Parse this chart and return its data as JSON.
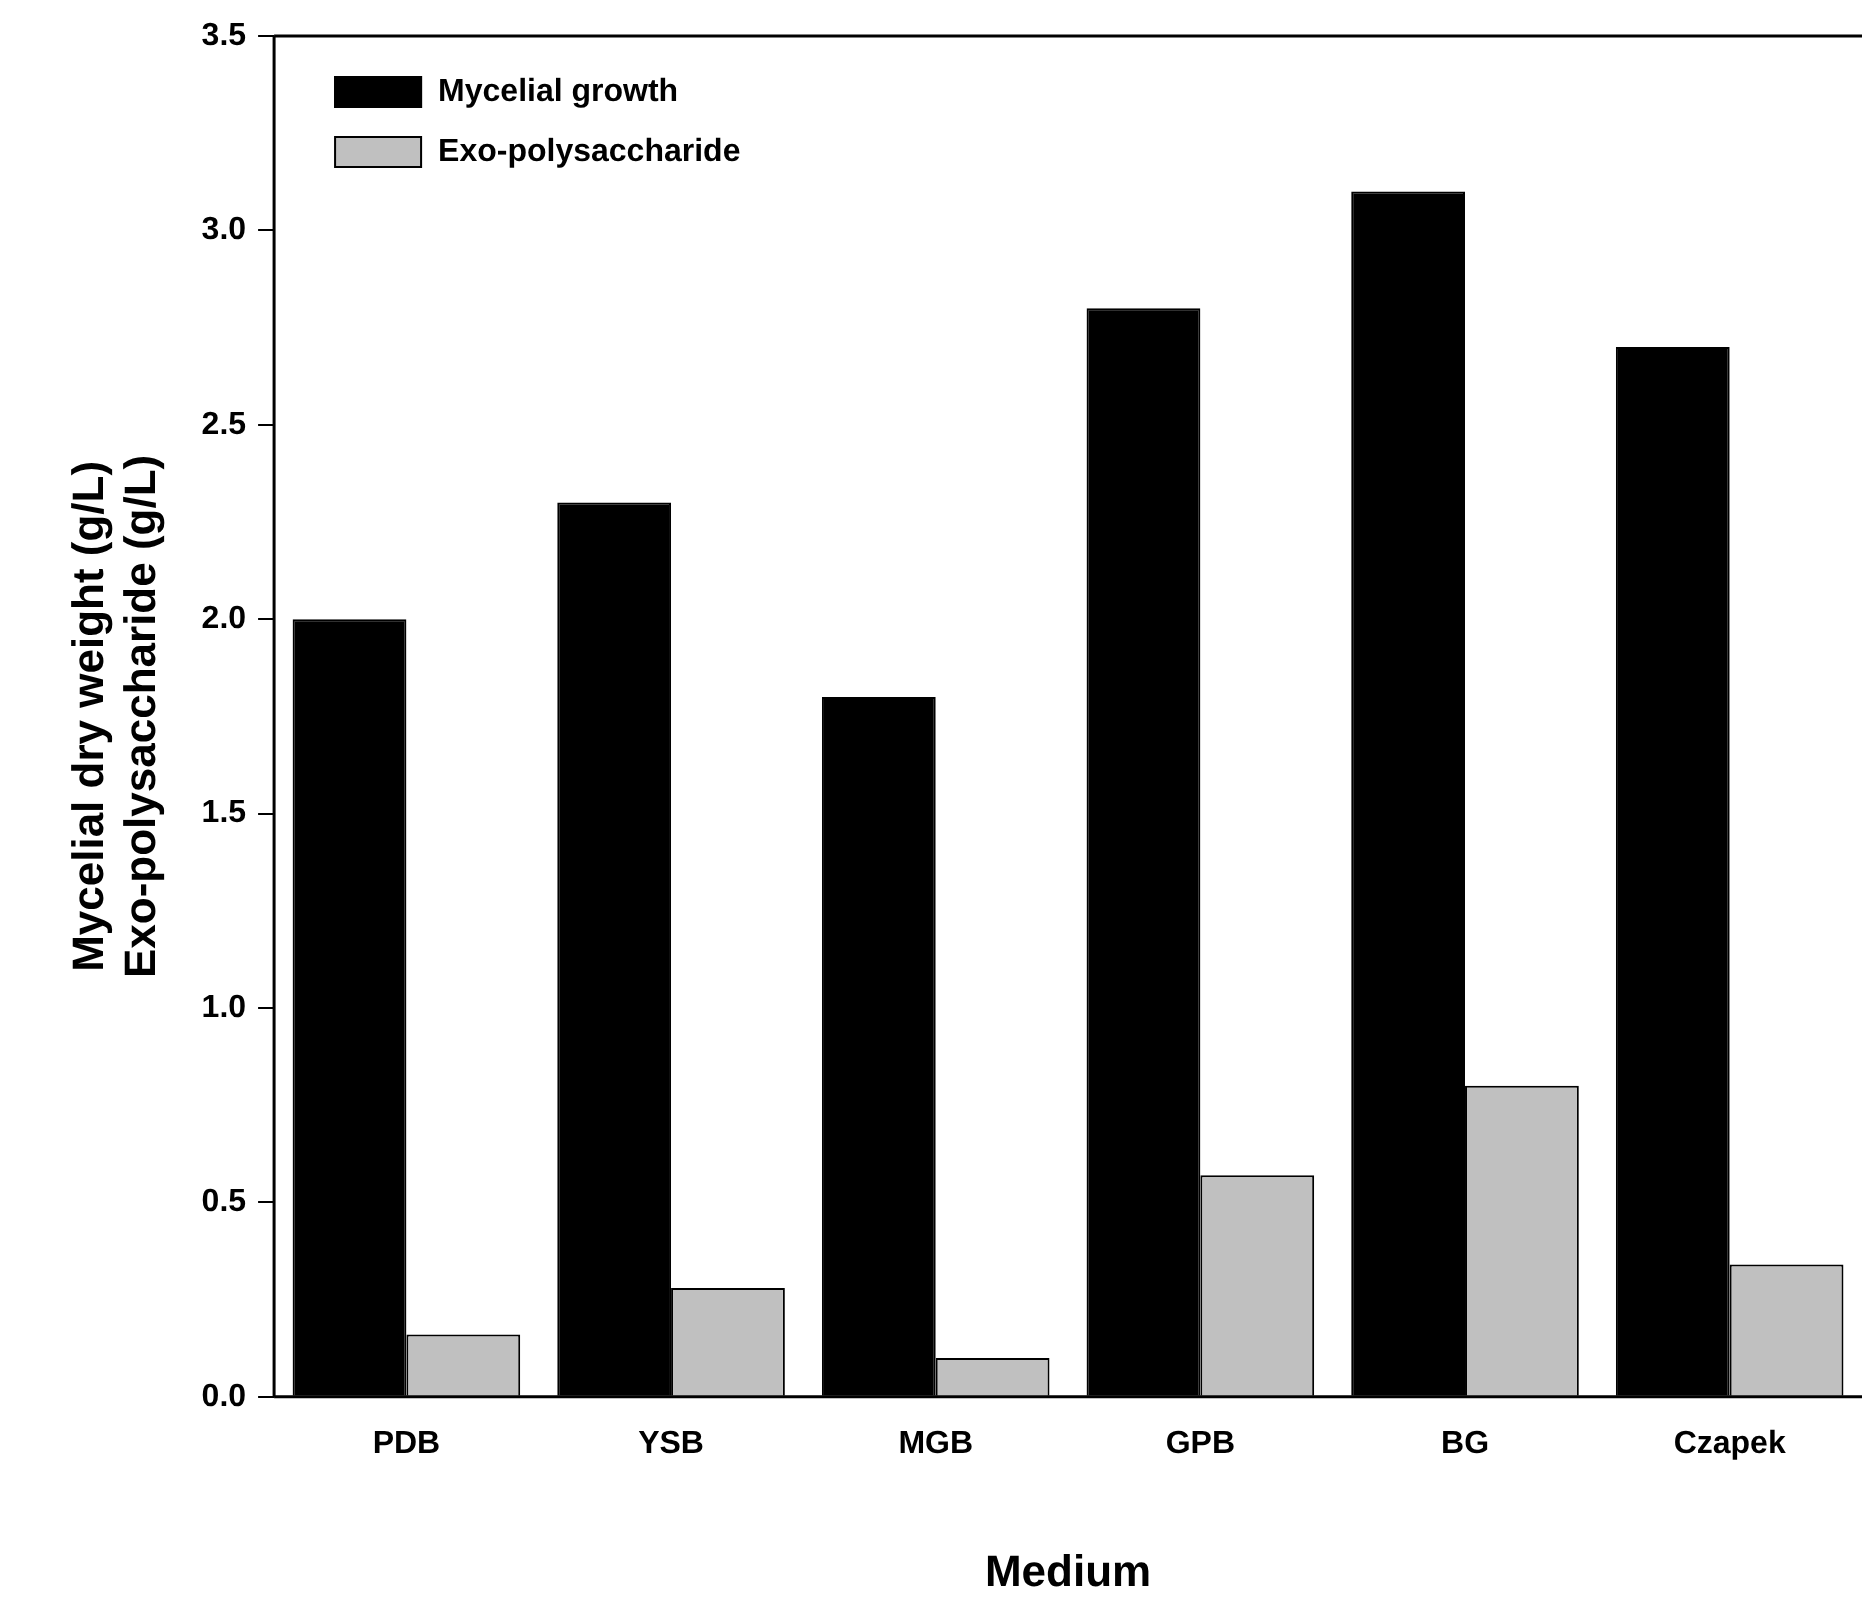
{
  "chart_data": {
    "type": "bar",
    "xlabel": "Medium",
    "ylabel": "Mycelial dry weight (g/L)\nExo-polysaccharide (g/L)",
    "categories": [
      "PDB",
      "YSB",
      "MGB",
      "GPB",
      "BG",
      "Czapek"
    ],
    "series": [
      {
        "name": "Mycelial growth",
        "color": "#000000",
        "values": [
          2.0,
          2.3,
          1.8,
          2.8,
          3.1,
          2.7
        ]
      },
      {
        "name": "Exo-polysaccharide",
        "color": "#c0c0c0",
        "values": [
          0.16,
          0.28,
          0.1,
          0.57,
          0.8,
          0.34
        ]
      }
    ],
    "ylim": [
      0,
      3.5
    ],
    "yticks": [
      {
        "value": 0,
        "label": "0.0"
      },
      0.5,
      {
        "value": 1,
        "label": "1.0"
      },
      1.5,
      {
        "value": 2,
        "label": "2.0"
      },
      2.5,
      {
        "value": 3,
        "label": "3.0"
      },
      3.5
    ],
    "grid": false,
    "legend": "top left"
  }
}
